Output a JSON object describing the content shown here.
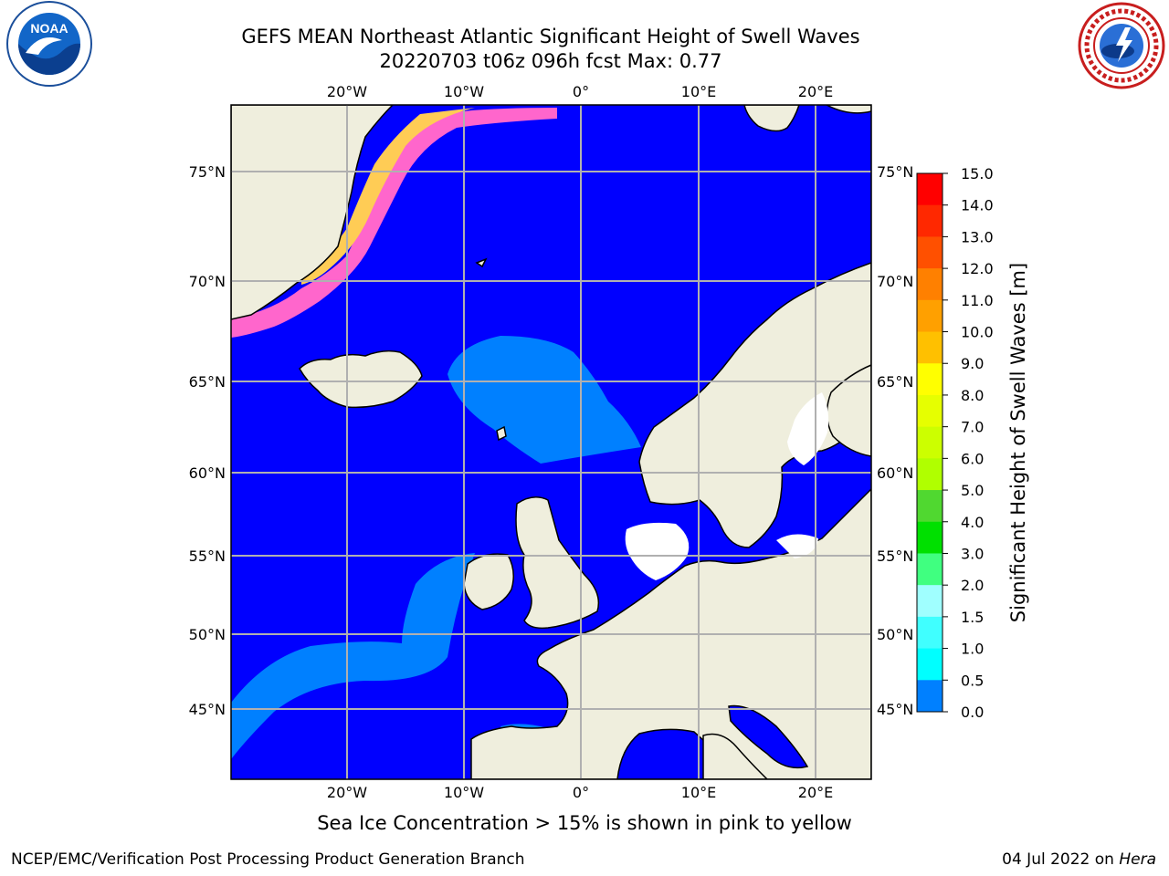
{
  "title_line1": "GEFS MEAN Northeast Atlantic Significant Height of Swell Waves",
  "title_line2": "20220703 t06z 096h fcst   Max: 0.77",
  "subtitle": "Sea Ice Concentration > 15% is shown in pink to yellow",
  "footer_left": "NCEP/EMC/Verification Post Processing Product Generation Branch",
  "footer_date": "04 Jul 2022 on ",
  "footer_machine": "Hera",
  "logos": {
    "left": "noaa-logo",
    "right": "nws-logo",
    "left_text": "NOAA"
  },
  "map": {
    "lon_labels": [
      "20°W",
      "10°W",
      "0°",
      "10°E",
      "20°E"
    ],
    "lat_labels": [
      "75°N",
      "70°N",
      "65°N",
      "60°N",
      "55°N",
      "50°N",
      "45°N"
    ],
    "colors": {
      "ocean": "#0000ff",
      "land": "#efeedd",
      "swell_05_10": "#0080ff",
      "grid": "#b0b0b0"
    }
  },
  "colorbar": {
    "label": "Significant Height of Swell Waves [m]",
    "ticks": [
      "15.0",
      "14.0",
      "13.0",
      "12.0",
      "11.0",
      "10.0",
      "9.0",
      "8.0",
      "7.0",
      "6.0",
      "5.0",
      "4.0",
      "3.0",
      "2.0",
      "1.5",
      "1.0",
      "0.5",
      "0.0"
    ],
    "colors": [
      "#ff0000",
      "#ff2800",
      "#ff5000",
      "#ff8000",
      "#ffa000",
      "#ffc000",
      "#ffff00",
      "#e6ff00",
      "#ccff00",
      "#b0ff00",
      "#50d830",
      "#00e000",
      "#40ff80",
      "#a0ffff",
      "#40ffff",
      "#00ffff",
      "#0080ff",
      "#0000ff"
    ]
  }
}
